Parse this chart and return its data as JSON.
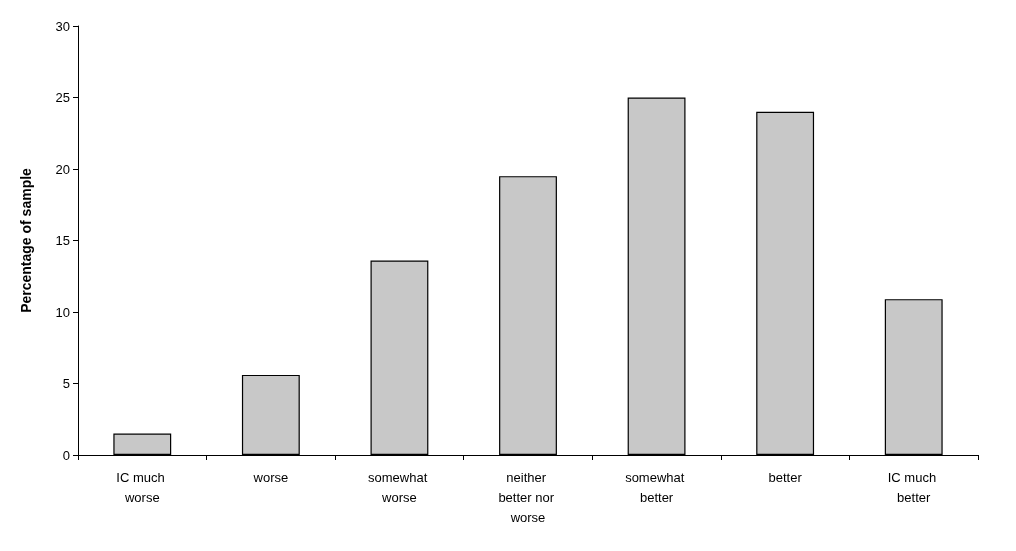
{
  "chart_data": {
    "type": "bar",
    "ylabel": "Percentage of sample",
    "categories": [
      "IC much worse",
      "worse",
      "somewhat worse",
      "neither better nor worse",
      "somewhat better",
      "better",
      "IC much better"
    ],
    "values": [
      1.5,
      5.6,
      13.6,
      19.5,
      25,
      24,
      10.9
    ],
    "color": "#c8c8c8",
    "ylim": [
      0,
      30
    ],
    "yticks": [
      0,
      5,
      10,
      15,
      20,
      25,
      30
    ],
    "grid": false
  }
}
